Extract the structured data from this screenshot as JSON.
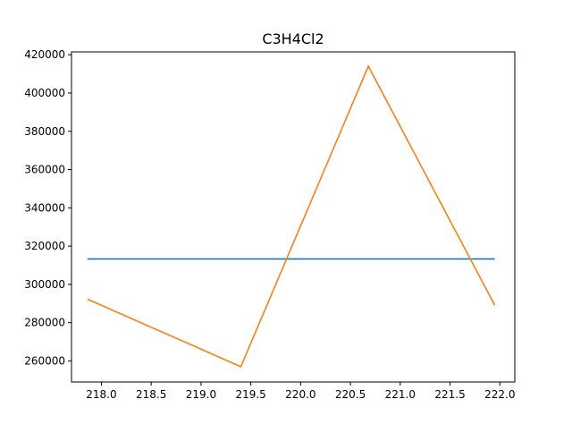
{
  "chart_data": {
    "type": "line",
    "title": "C3H4Cl2",
    "xlabel": "",
    "ylabel": "",
    "xlim": [
      217.7,
      222.15
    ],
    "ylim": [
      249000,
      421500
    ],
    "x_ticks": [
      218.0,
      218.5,
      219.0,
      219.5,
      220.0,
      220.5,
      221.0,
      221.5,
      222.0
    ],
    "x_tick_labels": [
      "218.0",
      "218.5",
      "219.0",
      "219.5",
      "220.0",
      "220.5",
      "221.0",
      "221.5",
      "222.0"
    ],
    "y_ticks": [
      260000,
      280000,
      300000,
      320000,
      340000,
      360000,
      380000,
      400000,
      420000
    ],
    "y_tick_labels": [
      "260000",
      "280000",
      "300000",
      "320000",
      "340000",
      "360000",
      "380000",
      "400000",
      "420000"
    ],
    "grid": false,
    "legend": "none",
    "series": [
      {
        "color": "#1f77b4",
        "x": [
          217.86,
          221.95
        ],
        "y": [
          313300,
          313300
        ]
      },
      {
        "color": "#ff7f0e",
        "x": [
          217.86,
          219.4,
          220.68,
          221.95
        ],
        "y": [
          292300,
          257000,
          414000,
          289000
        ]
      }
    ]
  }
}
